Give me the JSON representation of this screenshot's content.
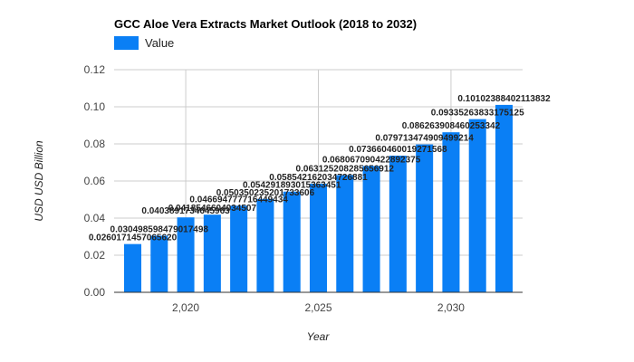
{
  "chart_data": {
    "type": "bar",
    "title": "GCC Aloe Vera Extracts Market Outlook (2018 to 2032)",
    "xlabel": "Year",
    "ylabel": "USD USD Billion",
    "x": [
      2018,
      2019,
      2020,
      2021,
      2022,
      2023,
      2024,
      2025,
      2026,
      2027,
      2028,
      2029,
      2030,
      2031,
      2032
    ],
    "x_tick_values": [
      2020,
      2025,
      2030
    ],
    "x_tick_labels": [
      "2,020",
      "2,025",
      "2,030"
    ],
    "xlim": [
      2017.3,
      2032.7
    ],
    "ylim": [
      0,
      0.12
    ],
    "y_ticks": [
      0,
      0.02,
      0.04,
      0.06,
      0.08,
      0.1,
      0.12
    ],
    "y_tick_labels": [
      "0.00",
      "0.02",
      "0.04",
      "0.06",
      "0.08",
      "0.10",
      "0.12"
    ],
    "grid": true,
    "legend_position": "top-left",
    "series": [
      {
        "name": "Value",
        "color": "#0a7ff5",
        "values": [
          0.02601714570656206,
          0.030498598479017498,
          0.04038917346459635,
          0.04185466040345071,
          0.04669477771644943,
          0.05035023520173361,
          0.05429189301536345,
          0.05854216203472688,
          0.06312520828565692,
          0.06806709042289237,
          0.07366046001927155,
          0.0797134749094992,
          0.08626390846025334,
          0.09335263833175118,
          0.10102388402113832
        ],
        "labels": [
          "0.0260171457065620",
          "0.030498598479017498",
          "0.0403891734645963",
          "0.0418546604034507",
          "0.046694777716449434",
          "0.050350235201733606",
          "0.054291893015363451",
          "0.058542162034726881",
          "0.063125208285656912",
          "0.068067090422892375",
          "0.073660460019271568",
          "0.079713474909499214",
          "0.086263908460253342",
          "0.09335263833175125",
          "0.10102388402113832"
        ]
      }
    ]
  }
}
